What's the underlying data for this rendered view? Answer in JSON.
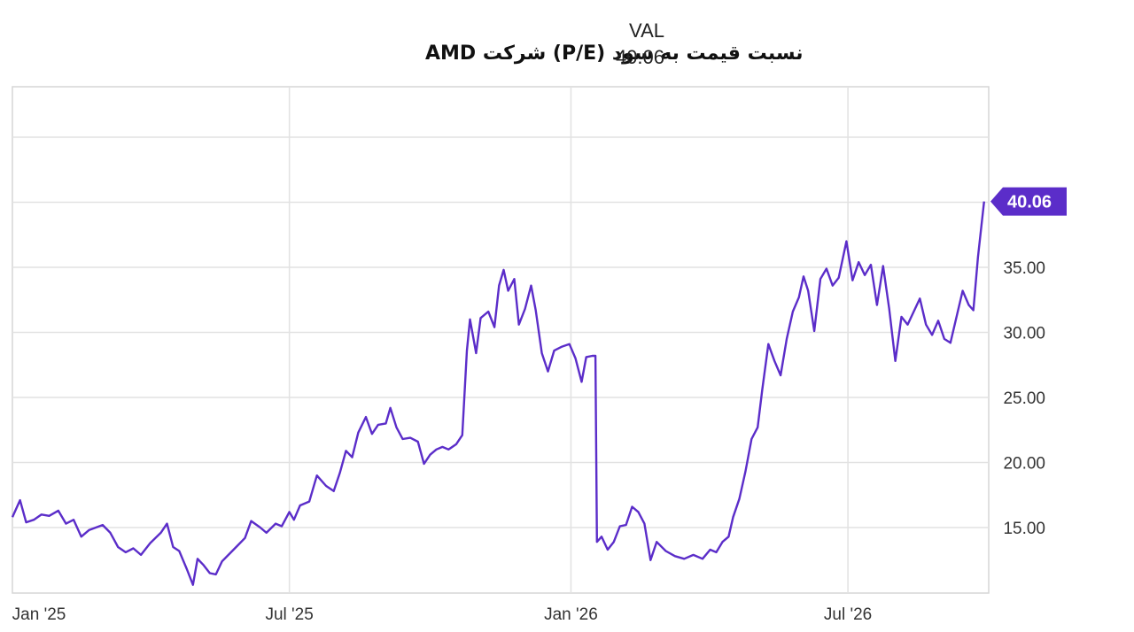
{
  "chart_data": {
    "type": "line",
    "title": "نسبت قیمت به سود (P/E) شرکت AMD",
    "legend": {
      "label": "VAL",
      "value": "40.06"
    },
    "current_value_badge": "40.06",
    "series_color": "#5b2dc9",
    "xlabel": "",
    "ylabel": "",
    "x_tick_labels": [
      "Jan '25",
      "Jul '25",
      "Jan '26",
      "Jul '26"
    ],
    "y_tick_labels": [
      "15.00",
      "20.00",
      "25.00",
      "30.00",
      "35.00"
    ],
    "ylim": [
      10,
      48
    ],
    "grid": true,
    "series": [
      {
        "points": [
          [
            "2025-01-01",
            15.8
          ],
          [
            "2025-01-06",
            17.1
          ],
          [
            "2025-01-10",
            15.4
          ],
          [
            "2025-01-15",
            15.6
          ],
          [
            "2025-01-20",
            16.0
          ],
          [
            "2025-01-25",
            15.9
          ],
          [
            "2025-01-31",
            16.3
          ],
          [
            "2025-02-05",
            15.3
          ],
          [
            "2025-02-10",
            15.6
          ],
          [
            "2025-02-15",
            14.3
          ],
          [
            "2025-02-20",
            14.8
          ],
          [
            "2025-03-01",
            15.2
          ],
          [
            "2025-03-06",
            14.6
          ],
          [
            "2025-03-11",
            13.5
          ],
          [
            "2025-03-16",
            13.1
          ],
          [
            "2025-03-21",
            13.4
          ],
          [
            "2025-03-26",
            12.9
          ],
          [
            "2025-04-01",
            13.8
          ],
          [
            "2025-04-08",
            14.6
          ],
          [
            "2025-04-12",
            15.3
          ],
          [
            "2025-04-16",
            13.5
          ],
          [
            "2025-04-20",
            13.2
          ],
          [
            "2025-04-25",
            11.8
          ],
          [
            "2025-04-29",
            10.6
          ],
          [
            "2025-05-02",
            12.6
          ],
          [
            "2025-05-06",
            12.1
          ],
          [
            "2025-05-10",
            11.5
          ],
          [
            "2025-05-14",
            11.4
          ],
          [
            "2025-05-18",
            12.4
          ],
          [
            "2025-05-23",
            13.0
          ],
          [
            "2025-05-28",
            13.6
          ],
          [
            "2025-06-02",
            14.2
          ],
          [
            "2025-06-06",
            15.5
          ],
          [
            "2025-06-12",
            15.0
          ],
          [
            "2025-06-16",
            14.6
          ],
          [
            "2025-06-22",
            15.3
          ],
          [
            "2025-06-26",
            15.1
          ],
          [
            "2025-07-01",
            16.2
          ],
          [
            "2025-07-04",
            15.6
          ],
          [
            "2025-07-08",
            16.7
          ],
          [
            "2025-07-14",
            17.0
          ],
          [
            "2025-07-19",
            19.0
          ],
          [
            "2025-07-25",
            18.2
          ],
          [
            "2025-07-30",
            17.8
          ],
          [
            "2025-08-03",
            19.2
          ],
          [
            "2025-08-07",
            20.9
          ],
          [
            "2025-08-11",
            20.4
          ],
          [
            "2025-08-15",
            22.3
          ],
          [
            "2025-08-20",
            23.5
          ],
          [
            "2025-08-24",
            22.2
          ],
          [
            "2025-08-28",
            22.9
          ],
          [
            "2025-09-02",
            23.0
          ],
          [
            "2025-09-05",
            24.2
          ],
          [
            "2025-09-09",
            22.7
          ],
          [
            "2025-09-13",
            21.8
          ],
          [
            "2025-09-18",
            21.9
          ],
          [
            "2025-09-23",
            21.6
          ],
          [
            "2025-09-27",
            19.9
          ],
          [
            "2025-10-01",
            20.6
          ],
          [
            "2025-10-05",
            21.0
          ],
          [
            "2025-10-09",
            21.2
          ],
          [
            "2025-10-13",
            21.0
          ],
          [
            "2025-10-18",
            21.4
          ],
          [
            "2025-10-22",
            22.1
          ],
          [
            "2025-10-25",
            28.6
          ],
          [
            "2025-10-27",
            31.0
          ],
          [
            "2025-10-31",
            28.4
          ],
          [
            "2025-11-03",
            31.1
          ],
          [
            "2025-11-08",
            31.6
          ],
          [
            "2025-11-12",
            30.4
          ],
          [
            "2025-11-15",
            33.6
          ],
          [
            "2025-11-18",
            34.8
          ],
          [
            "2025-11-21",
            33.2
          ],
          [
            "2025-11-25",
            34.1
          ],
          [
            "2025-11-28",
            30.6
          ],
          [
            "2025-12-02",
            31.8
          ],
          [
            "2025-12-06",
            33.6
          ],
          [
            "2025-12-09",
            31.7
          ],
          [
            "2025-12-13",
            28.4
          ],
          [
            "2025-12-17",
            27.0
          ],
          [
            "2025-12-21",
            28.6
          ],
          [
            "2025-12-26",
            28.9
          ],
          [
            "2025-12-31",
            29.1
          ],
          [
            "2026-01-04",
            28.0
          ],
          [
            "2026-01-08",
            26.2
          ],
          [
            "2026-01-11",
            28.1
          ],
          [
            "2026-01-15",
            28.2
          ],
          [
            "2026-01-17",
            28.2
          ],
          [
            "2026-01-18",
            13.9
          ],
          [
            "2026-01-21",
            14.3
          ],
          [
            "2026-01-25",
            13.3
          ],
          [
            "2026-01-29",
            13.9
          ],
          [
            "2026-02-02",
            15.1
          ],
          [
            "2026-02-06",
            15.2
          ],
          [
            "2026-02-10",
            16.6
          ],
          [
            "2026-02-14",
            16.2
          ],
          [
            "2026-02-18",
            15.3
          ],
          [
            "2026-02-22",
            12.5
          ],
          [
            "2026-02-26",
            13.9
          ],
          [
            "2026-03-04",
            13.2
          ],
          [
            "2026-03-10",
            12.8
          ],
          [
            "2026-03-16",
            12.6
          ],
          [
            "2026-03-22",
            12.9
          ],
          [
            "2026-03-28",
            12.6
          ],
          [
            "2026-04-02",
            13.3
          ],
          [
            "2026-04-06",
            13.1
          ],
          [
            "2026-04-10",
            13.9
          ],
          [
            "2026-04-14",
            14.3
          ],
          [
            "2026-04-17",
            15.8
          ],
          [
            "2026-04-21",
            17.2
          ],
          [
            "2026-04-25",
            19.3
          ],
          [
            "2026-04-29",
            21.8
          ],
          [
            "2026-05-03",
            22.7
          ],
          [
            "2026-05-06",
            25.6
          ],
          [
            "2026-05-10",
            29.1
          ],
          [
            "2026-05-14",
            27.8
          ],
          [
            "2026-05-18",
            26.7
          ],
          [
            "2026-05-22",
            29.5
          ],
          [
            "2026-05-26",
            31.6
          ],
          [
            "2026-05-30",
            32.7
          ],
          [
            "2026-06-02",
            34.3
          ],
          [
            "2026-06-05",
            33.2
          ],
          [
            "2026-06-09",
            30.1
          ],
          [
            "2026-06-13",
            34.1
          ],
          [
            "2026-06-17",
            34.9
          ],
          [
            "2026-06-21",
            33.6
          ],
          [
            "2026-06-25",
            34.2
          ],
          [
            "2026-06-30",
            37.0
          ],
          [
            "2026-07-04",
            34.0
          ],
          [
            "2026-07-08",
            35.4
          ],
          [
            "2026-07-12",
            34.4
          ],
          [
            "2026-07-16",
            35.2
          ],
          [
            "2026-07-20",
            32.1
          ],
          [
            "2026-07-24",
            35.1
          ],
          [
            "2026-07-28",
            31.8
          ],
          [
            "2026-08-01",
            27.8
          ],
          [
            "2026-08-05",
            31.2
          ],
          [
            "2026-08-09",
            30.6
          ],
          [
            "2026-08-13",
            31.6
          ],
          [
            "2026-08-17",
            32.6
          ],
          [
            "2026-08-21",
            30.6
          ],
          [
            "2026-08-25",
            29.8
          ],
          [
            "2026-08-29",
            30.9
          ],
          [
            "2026-09-02",
            29.5
          ],
          [
            "2026-09-06",
            29.2
          ],
          [
            "2026-09-10",
            31.2
          ],
          [
            "2026-09-14",
            33.2
          ],
          [
            "2026-09-18",
            32.1
          ],
          [
            "2026-09-21",
            31.7
          ],
          [
            "2026-09-24",
            35.8
          ],
          [
            "2026-09-28",
            40.06
          ]
        ]
      }
    ]
  }
}
